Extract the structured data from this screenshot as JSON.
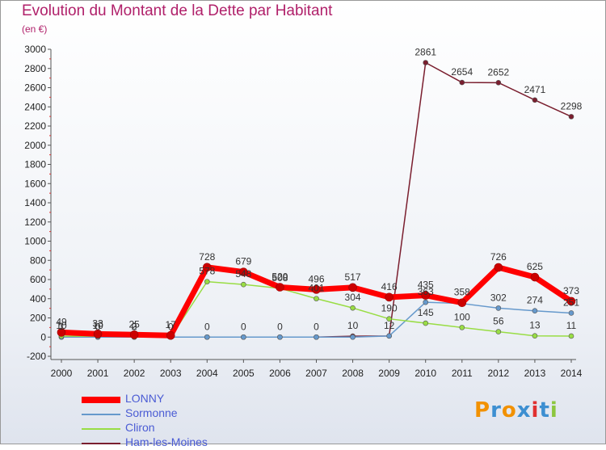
{
  "chart_data": {
    "type": "line",
    "title": "Evolution du Montant de la Dette par Habitant",
    "subtitle": "(en €)",
    "x": [
      "2000",
      "2001",
      "2002",
      "2003",
      "2004",
      "2005",
      "2006",
      "2007",
      "2008",
      "2009",
      "2010",
      "2011",
      "2012",
      "2013",
      "2014"
    ],
    "ylim": [
      -200,
      3000
    ],
    "yticks": [
      -200,
      0,
      200,
      400,
      600,
      800,
      1000,
      1200,
      1400,
      1600,
      1800,
      2000,
      2200,
      2400,
      2600,
      2800,
      3000
    ],
    "grid": false,
    "series": [
      {
        "name": "LONNY",
        "color": "#ff0000",
        "values": [
          49,
          33,
          25,
          17,
          728,
          679,
          520,
          496,
          517,
          416,
          435,
          358,
          726,
          625,
          373
        ],
        "labels": [
          "49",
          "33",
          "25",
          "17",
          "728",
          "679",
          "520",
          "496",
          "517",
          "416",
          "435",
          "358",
          "726",
          "625",
          "373"
        ]
      },
      {
        "name": "Sormonne",
        "color": "#6699cc",
        "values": [
          0,
          0,
          0,
          0,
          0,
          0,
          0,
          0,
          0,
          12,
          363,
          350,
          302,
          274,
          251
        ],
        "labels": [
          "",
          "",
          "",
          "",
          "",
          "",
          "",
          "",
          "",
          "",
          "363",
          "",
          "302",
          "274",
          "251"
        ]
      },
      {
        "name": "Cliron",
        "color": "#99dd44",
        "values": [
          10,
          10,
          2,
          0,
          578,
          548,
          508,
          401,
          304,
          190,
          145,
          100,
          56,
          13,
          11
        ],
        "labels": [
          "10",
          "10",
          "2",
          "",
          "578",
          "548",
          "508",
          "401",
          "304",
          "190",
          "145",
          "100",
          "56",
          "13",
          "11"
        ]
      },
      {
        "name": "Ham-les-Moines",
        "color": "#7a1e2e",
        "values": [
          1,
          0,
          0,
          0,
          0,
          0,
          0,
          0,
          10,
          12,
          2861,
          2654,
          2652,
          2471,
          2298
        ],
        "labels": [
          "1",
          "0",
          "0",
          "0",
          "0",
          "0",
          "0",
          "0",
          "10",
          "12",
          "2861",
          "2654",
          "2652",
          "2471",
          "2298"
        ]
      }
    ],
    "legend_position": "bottom-left"
  },
  "legend": {
    "items": [
      {
        "label": "LONNY",
        "color": "#ff0000"
      },
      {
        "label": "Sormonne",
        "color": "#6699cc"
      },
      {
        "label": "Cliron",
        "color": "#99dd44"
      },
      {
        "label": "Ham-les-Moines",
        "color": "#7a1e2e"
      }
    ]
  },
  "logo": {
    "text": "Proxiti",
    "letters": [
      "P",
      "r",
      "o",
      "x",
      "i",
      "t",
      "i"
    ],
    "colors": [
      "#f29100",
      "#3d8fd1",
      "#f29100",
      "#3d8fd1",
      "#e03030",
      "#3d8fd1",
      "#8cc63f"
    ]
  }
}
